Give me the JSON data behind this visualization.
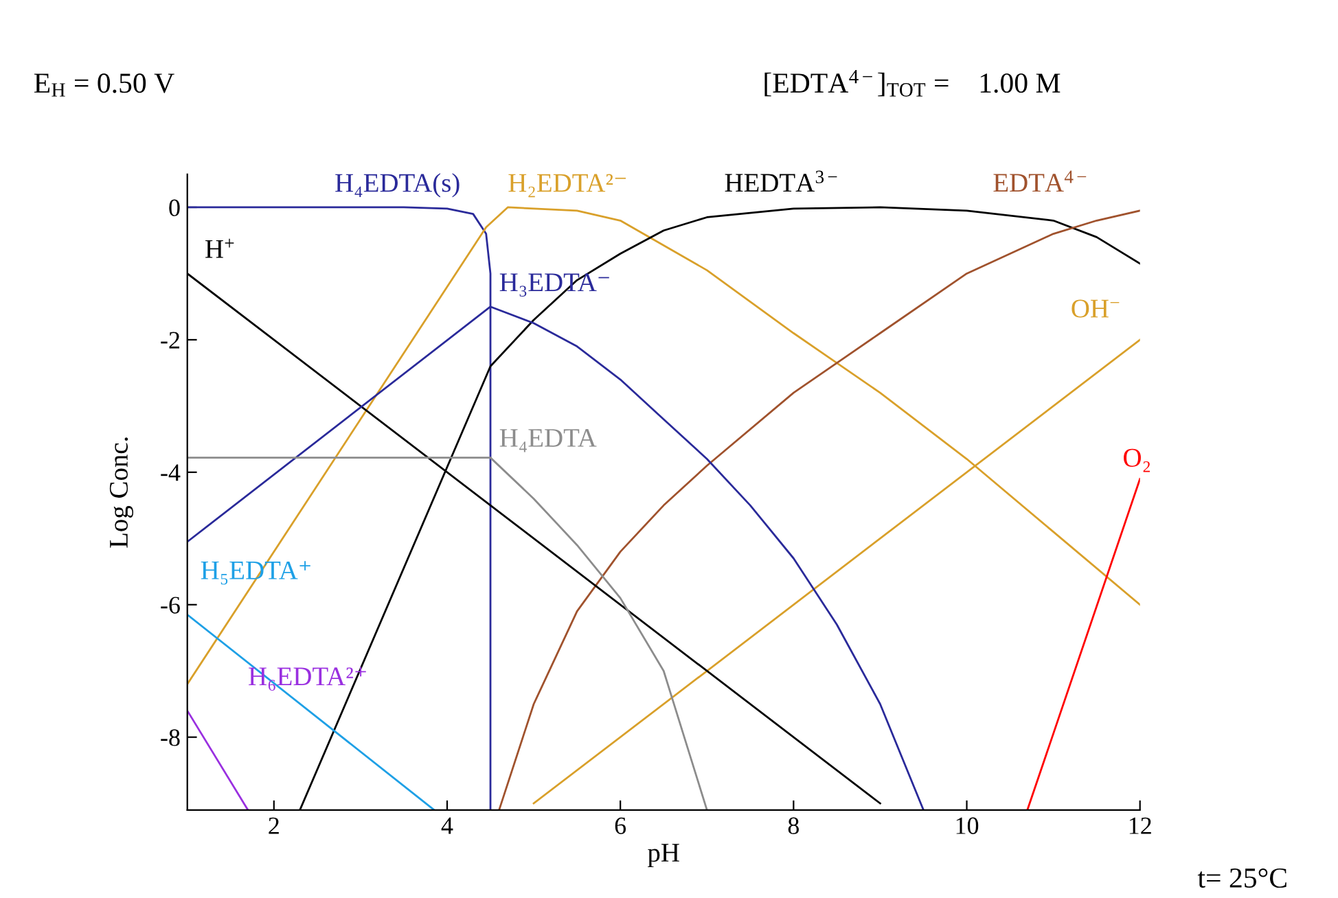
{
  "chart_data": {
    "type": "line",
    "xlabel": "pH",
    "ylabel": "Log Conc.",
    "xlim": [
      1,
      12
    ],
    "ylim": [
      -9.1,
      0.5
    ],
    "xticks": [
      2,
      4,
      6,
      8,
      10,
      12
    ],
    "yticks": [
      -8,
      -6,
      -4,
      -2,
      0
    ],
    "grid": false,
    "legend": false,
    "marker": "none",
    "line_style": "solid",
    "annotations": [
      "E$_{H}$ = 0.50 V",
      "[EDTA$^{4−}$]$_{TOT}$ =    1.00 M",
      "t= 25°C"
    ],
    "series": [
      {
        "name": "H₄EDTA(s)",
        "color": "#2a2a9a",
        "x": [
          1,
          3.5,
          4.0,
          4.3,
          4.45,
          4.5,
          4.5
        ],
        "values": [
          0,
          0,
          -0.02,
          -0.1,
          -0.4,
          -1,
          -9.1
        ]
      },
      {
        "name": "H₂EDTA²⁻",
        "color": "#d9a02a",
        "x": [
          1,
          4.45,
          4.7,
          5.5,
          6,
          7,
          8,
          9,
          10,
          11,
          12
        ],
        "values": [
          -7.2,
          -0.3,
          0,
          -0.05,
          -0.2,
          -0.95,
          -1.9,
          -2.8,
          -3.8,
          -4.9,
          -6
        ]
      },
      {
        "name": "HEDTA$^{3−}$",
        "color": "#000000",
        "x": [
          2.3,
          4.5,
          5,
          5.5,
          6,
          6.5,
          7,
          8,
          9,
          10,
          11,
          11.5,
          12
        ],
        "values": [
          -9.1,
          -2.4,
          -1.7,
          -1.1,
          -0.7,
          -0.35,
          -0.15,
          -0.02,
          0,
          -0.05,
          -0.2,
          -0.45,
          -0.85
        ]
      },
      {
        "name": "EDTA$^{4−}$",
        "color": "#a0522d",
        "x": [
          4.6,
          5,
          5.5,
          6,
          6.5,
          7,
          8,
          9,
          10,
          11,
          11.5,
          12
        ],
        "values": [
          -9.1,
          -7.5,
          -6.1,
          -5.2,
          -4.5,
          -3.9,
          -2.8,
          -1.9,
          -1,
          -0.4,
          -0.2,
          -0.05
        ]
      },
      {
        "name": "OH$^{−}$",
        "color": "#d9a02a",
        "x": [
          5,
          12
        ],
        "values": [
          -9,
          -2
        ]
      },
      {
        "name": "O₂",
        "color": "#ff0000",
        "x": [
          10.7,
          12
        ],
        "values": [
          -9.1,
          -4.1
        ]
      },
      {
        "name": "H$^{+}$",
        "color": "#000000",
        "x": [
          1,
          9
        ],
        "values": [
          -1,
          -9
        ]
      },
      {
        "name": "H₃EDTA⁻",
        "color": "#2a2a9a",
        "x": [
          1,
          4.5,
          5,
          5.5,
          6,
          6.5,
          7,
          7.5,
          8,
          8.5,
          9,
          9.5
        ],
        "values": [
          -5.05,
          -1.5,
          -1.75,
          -2.1,
          -2.6,
          -3.2,
          -3.8,
          -4.5,
          -5.3,
          -6.3,
          -7.5,
          -9.1
        ]
      },
      {
        "name": "H₄EDTA",
        "color": "#8c8c8c",
        "x": [
          1,
          4.5,
          5,
          5.5,
          6,
          6.5,
          7
        ],
        "values": [
          -3.78,
          -3.78,
          -4.4,
          -5.1,
          -5.9,
          -7,
          -9.1
        ]
      },
      {
        "name": "H₅EDTA⁺",
        "color": "#1ea0e6",
        "x": [
          1,
          3.85
        ],
        "values": [
          -6.15,
          -9.1
        ]
      },
      {
        "name": "H₆EDTA²⁺",
        "color": "#9a30e0",
        "x": [
          1,
          1.7
        ],
        "values": [
          -7.6,
          -9.1
        ]
      }
    ]
  }
}
